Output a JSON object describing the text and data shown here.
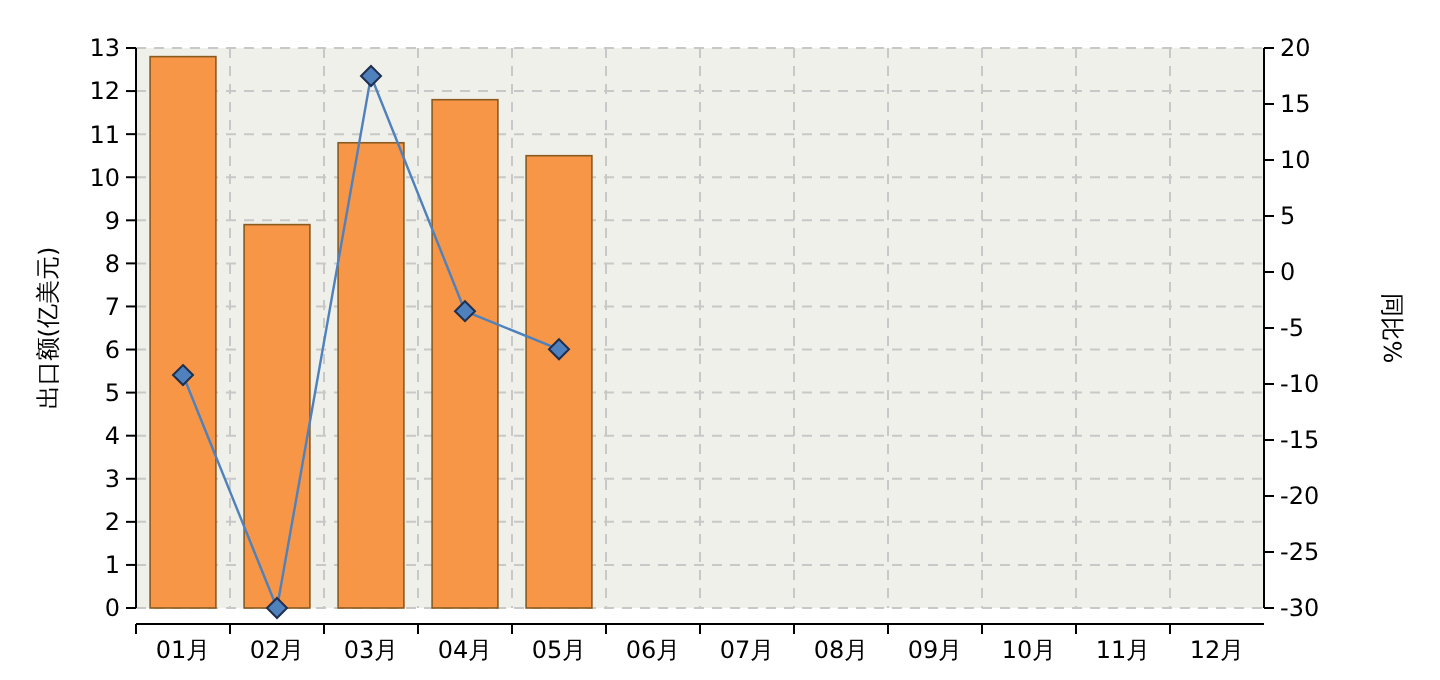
{
  "chart_data": {
    "type": "bar",
    "ylabel": "出口额(亿美元)",
    "y2label": "同比%",
    "categories": [
      "01月",
      "02月",
      "03月",
      "04月",
      "05月",
      "06月",
      "07月",
      "08月",
      "09月",
      "10月",
      "11月",
      "12月"
    ],
    "series": [
      {
        "color": "#f79646",
        "values": [
          12.8,
          8.9,
          10.8,
          11.8,
          10.5,
          null,
          null,
          null,
          null,
          null,
          null,
          null
        ]
      },
      {
        "type": "line",
        "axis": "y2",
        "color": "#4f81bd",
        "values": [
          -9.2,
          -30,
          17.5,
          -3.5,
          -6.9,
          null,
          null,
          null,
          null,
          null,
          null,
          null
        ]
      }
    ],
    "ylim": [
      0,
      13
    ],
    "yticks": [
      0,
      1,
      2,
      3,
      4,
      5,
      6,
      7,
      8,
      9,
      10,
      11,
      12,
      13
    ],
    "y2lim": [
      -30,
      20
    ],
    "y2ticks": [
      -30,
      -25,
      -20,
      -15,
      -10,
      -5,
      0,
      5,
      10,
      15,
      20
    ],
    "grid": true,
    "marker": "diamond",
    "line_style": "solid"
  }
}
